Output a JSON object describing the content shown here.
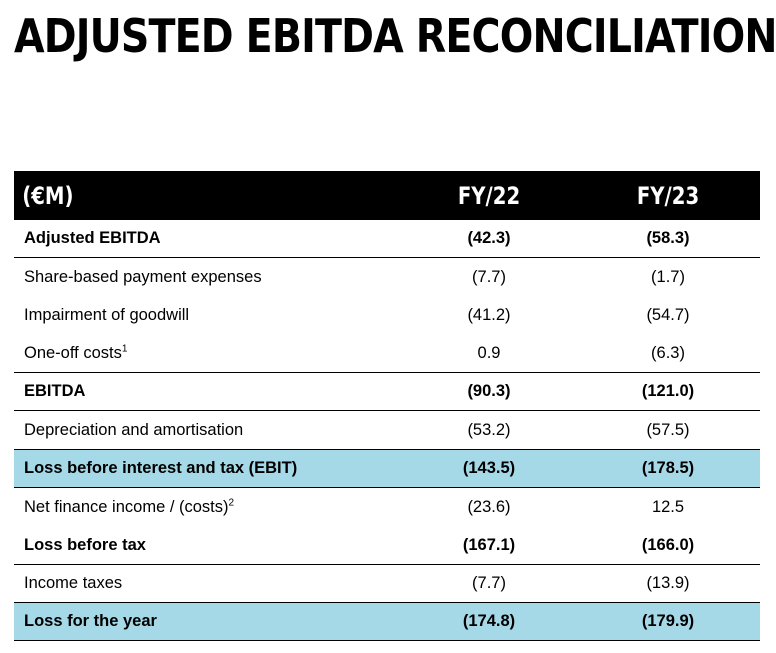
{
  "title": "ADJUSTED EBITDA RECONCILIATION",
  "header": {
    "unit": "(€M)",
    "col1": "FY/22",
    "col2": "FY/23"
  },
  "rows": [
    {
      "label": "Adjusted EBITDA",
      "sup": "",
      "fy22": "(42.3)",
      "fy23": "(58.3)"
    },
    {
      "label": "Share-based payment expenses",
      "sup": "",
      "fy22": "(7.7)",
      "fy23": "(1.7)"
    },
    {
      "label": "Impairment of goodwill",
      "sup": "",
      "fy22": "(41.2)",
      "fy23": "(54.7)"
    },
    {
      "label": "One-off costs",
      "sup": "1",
      "fy22": "0.9",
      "fy23": "(6.3)"
    },
    {
      "label": "EBITDA",
      "sup": "",
      "fy22": "(90.3)",
      "fy23": "(121.0)"
    },
    {
      "label": "Depreciation and amortisation",
      "sup": "",
      "fy22": "(53.2)",
      "fy23": "(57.5)"
    },
    {
      "label": "Loss before interest and tax (EBIT)",
      "sup": "",
      "fy22": "(143.5)",
      "fy23": "(178.5)"
    },
    {
      "label": "Net finance income / (costs)",
      "sup": "2",
      "fy22": "(23.6)",
      "fy23": "12.5"
    },
    {
      "label": "Loss before tax",
      "sup": "",
      "fy22": "(167.1)",
      "fy23": "(166.0)"
    },
    {
      "label": "Income taxes",
      "sup": "",
      "fy22": "(7.7)",
      "fy23": "(13.9)"
    },
    {
      "label": "Loss for the year",
      "sup": "",
      "fy22": "(174.8)",
      "fy23": "(179.9)"
    }
  ],
  "colors": {
    "highlight": "#a6d9e8",
    "header_bg": "#000000"
  }
}
